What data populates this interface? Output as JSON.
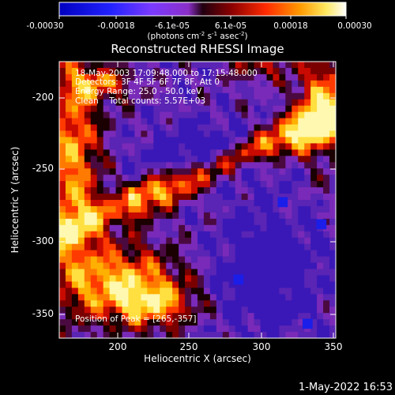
{
  "chart_data": {
    "type": "heatmap",
    "title": "Reconstructed RHESSI Image",
    "xlabel": "Heliocentric X (arcsec)",
    "ylabel": "Heliocentric Y (arcsec)",
    "xlim": [
      160,
      350
    ],
    "ylim": [
      -370,
      -180
    ],
    "xticks": [
      "200",
      "250",
      "300",
      "350"
    ],
    "yticks": [
      "-200",
      "-250",
      "-300",
      "-350"
    ],
    "colorbar": {
      "ticks": [
        "-0.00030",
        "-0.00018",
        "-6.1e-05",
        "6.1e-05",
        "0.00018",
        "0.00030"
      ],
      "range": [
        -0.0003,
        0.0003
      ],
      "unit_label": "(photons cm",
      "unit_sup1": "-2",
      "unit_mid": " s",
      "unit_sup2": "-1",
      "unit_mid2": " asec",
      "unit_sup3": "-2",
      "unit_end": ")"
    },
    "annotations": {
      "time_range": "18-May-2003 17:09:48.000 to 17:15:48.000",
      "detectors": "Detectors: 3F 4F 5F 6F 7F 8F, Att 0",
      "energy": "Energy Range: 25.0 - 50.0 keV",
      "clean": "Clean    Total counts: 5.57E+03",
      "peak": "Position of Peak = [265,-357]"
    },
    "colormap": "red-temperature",
    "value_layout": "bright emission along left edge, lower-left region and a diagonal band from left to upper-right; low values (purple/blue) in a central diagonal band and lower-right"
  },
  "footer": {
    "date": "1-May-2022 16:53"
  }
}
